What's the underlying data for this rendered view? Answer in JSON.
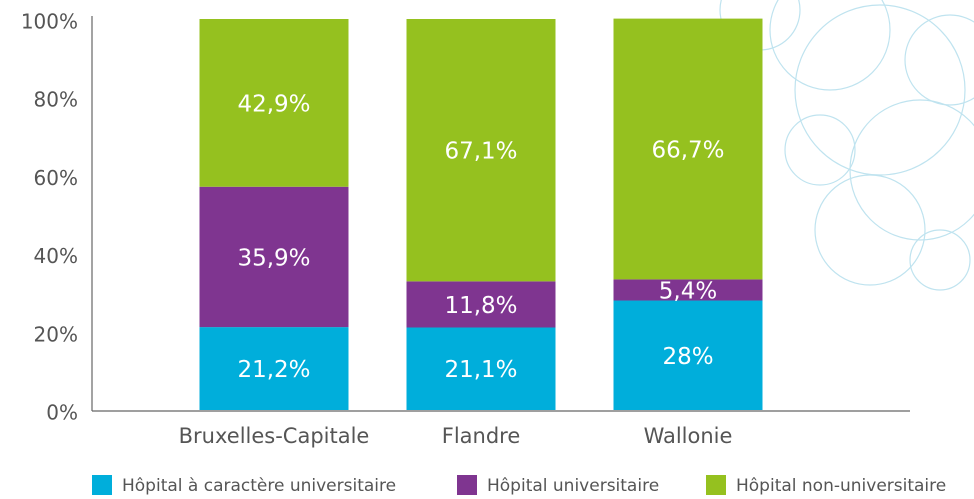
{
  "chart_data": {
    "type": "stacked_bar",
    "categories": [
      "Bruxelles-Capitale",
      "Flandre",
      "Wallonie"
    ],
    "series": [
      {
        "name": "Hôpital à caractère universitaire",
        "color": "#00aedb",
        "values": [
          21.2,
          21.1,
          28
        ],
        "value_labels": [
          "21,2%",
          "21,1%",
          "28%"
        ]
      },
      {
        "name": "Hôpital universitaire",
        "color": "#7f3590",
        "values": [
          35.9,
          11.8,
          5.4
        ],
        "value_labels": [
          "35,9%",
          "11,8%",
          "5,4%"
        ]
      },
      {
        "name": "Hôpital non-universitaire",
        "color": "#95c11f",
        "values": [
          42.9,
          67.1,
          66.7
        ],
        "value_labels": [
          "42,9%",
          "67,1%",
          "66,7%"
        ]
      }
    ],
    "ylim": [
      0,
      100
    ],
    "yticks": [
      {
        "value": 0,
        "label": "0%"
      },
      {
        "value": 20,
        "label": "20%"
      },
      {
        "value": 40,
        "label": "40%"
      },
      {
        "value": 60,
        "label": "60%"
      },
      {
        "value": 80,
        "label": "80%"
      },
      {
        "value": 100,
        "label": "100%"
      }
    ],
    "grid": false,
    "legend": "bottom"
  }
}
